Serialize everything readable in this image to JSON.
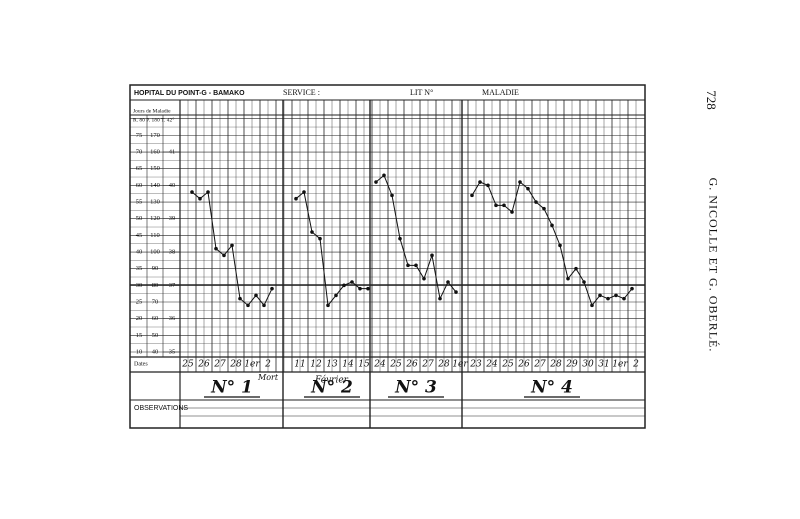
{
  "page": {
    "number": "728",
    "running_head": "G. NICOLLE ET G. OBERLÉ."
  },
  "form": {
    "hospital": "HOPITAL DU POINT-G - BAMAKO",
    "service": "SERVICE :",
    "bed": "LIT N°",
    "disease": "MALADIE",
    "days_label": "Jours de Maladie",
    "scale_header": "R. 80 P. 180 T. 42°",
    "dates_label": "Dates",
    "observations": "OBSERVATIONS",
    "month_note": "Février",
    "death_note": "Mort"
  },
  "chart_data": {
    "type": "line",
    "categories": [
      "25",
      null,
      "26",
      null,
      "27",
      null,
      "28",
      null,
      "1er",
      null,
      "2",
      null,
      null,
      null,
      "11",
      null,
      "12",
      null,
      "13",
      null,
      "14",
      null,
      "15",
      null,
      "24",
      null,
      "25",
      null,
      "26",
      null,
      "27",
      null,
      "28",
      null,
      "1er",
      null,
      "23",
      null,
      "24",
      null,
      "25",
      null,
      "26",
      null,
      "27",
      null,
      "28",
      null,
      "29",
      null,
      "30",
      null,
      "31",
      null,
      "1er",
      null,
      "2",
      null
    ],
    "series": [
      {
        "name": "N° 1",
        "color": "#111111",
        "values": [
          null,
          39.8,
          39.6,
          39.8,
          38.1,
          37.9,
          38.2,
          36.6,
          36.4,
          36.7,
          36.4,
          36.9,
          null,
          null,
          null,
          null,
          null,
          null,
          null,
          null,
          null,
          null,
          null,
          null,
          null,
          null,
          null,
          null,
          null,
          null,
          null,
          null,
          null,
          null,
          null,
          null,
          null,
          null,
          null,
          null,
          null,
          null,
          null,
          null,
          null,
          null,
          null,
          null,
          null,
          null,
          null,
          null,
          null,
          null,
          null,
          null,
          null,
          null
        ]
      },
      {
        "name": "N° 2",
        "color": "#111111",
        "values": [
          null,
          null,
          null,
          null,
          null,
          null,
          null,
          null,
          null,
          null,
          null,
          null,
          null,
          null,
          39.6,
          39.8,
          38.6,
          38.4,
          36.4,
          36.7,
          37.0,
          37.1,
          36.9,
          36.9,
          null,
          null,
          null,
          null,
          null,
          null,
          null,
          null,
          null,
          null,
          null,
          null,
          null,
          null,
          null,
          null,
          null,
          null,
          null,
          null,
          null,
          null,
          null,
          null,
          null,
          null,
          null,
          null,
          null,
          null,
          null,
          null,
          null,
          null
        ]
      },
      {
        "name": "N° 3",
        "color": "#111111",
        "values": [
          null,
          null,
          null,
          null,
          null,
          null,
          null,
          null,
          null,
          null,
          null,
          null,
          null,
          null,
          null,
          null,
          null,
          null,
          null,
          null,
          null,
          null,
          null,
          null,
          40.1,
          40.3,
          39.7,
          38.4,
          37.6,
          37.6,
          37.2,
          37.9,
          36.6,
          37.1,
          36.8,
          null,
          null,
          null,
          null,
          null,
          null,
          null,
          null,
          null,
          null,
          null,
          null,
          null,
          null,
          null,
          null,
          null,
          null,
          null,
          null,
          null,
          null,
          null
        ]
      },
      {
        "name": "N° 4",
        "color": "#111111",
        "values": [
          null,
          null,
          null,
          null,
          null,
          null,
          null,
          null,
          null,
          null,
          null,
          null,
          null,
          null,
          null,
          null,
          null,
          null,
          null,
          null,
          null,
          null,
          null,
          null,
          null,
          null,
          null,
          null,
          null,
          null,
          null,
          null,
          null,
          null,
          null,
          null,
          39.7,
          40.1,
          40.0,
          39.4,
          39.4,
          39.2,
          40.1,
          39.9,
          39.5,
          39.3,
          38.8,
          38.2,
          37.2,
          37.5,
          37.1,
          36.4,
          36.7,
          36.6,
          36.7,
          36.6,
          36.9,
          null
        ]
      }
    ],
    "ylim": [
      35,
      42
    ],
    "yticks": [
      35,
      36,
      37,
      38,
      39,
      40,
      41
    ],
    "pulse_lim": [
      40,
      180
    ],
    "pulse_ticks": [
      170,
      160,
      150,
      140,
      130,
      120,
      110,
      100,
      90,
      80,
      70,
      60,
      50,
      40
    ],
    "resp_lim": [
      10,
      80
    ],
    "resp_ticks": [
      75,
      70,
      65,
      60,
      55,
      50,
      45,
      40,
      35,
      30,
      25,
      20,
      15,
      10
    ]
  }
}
